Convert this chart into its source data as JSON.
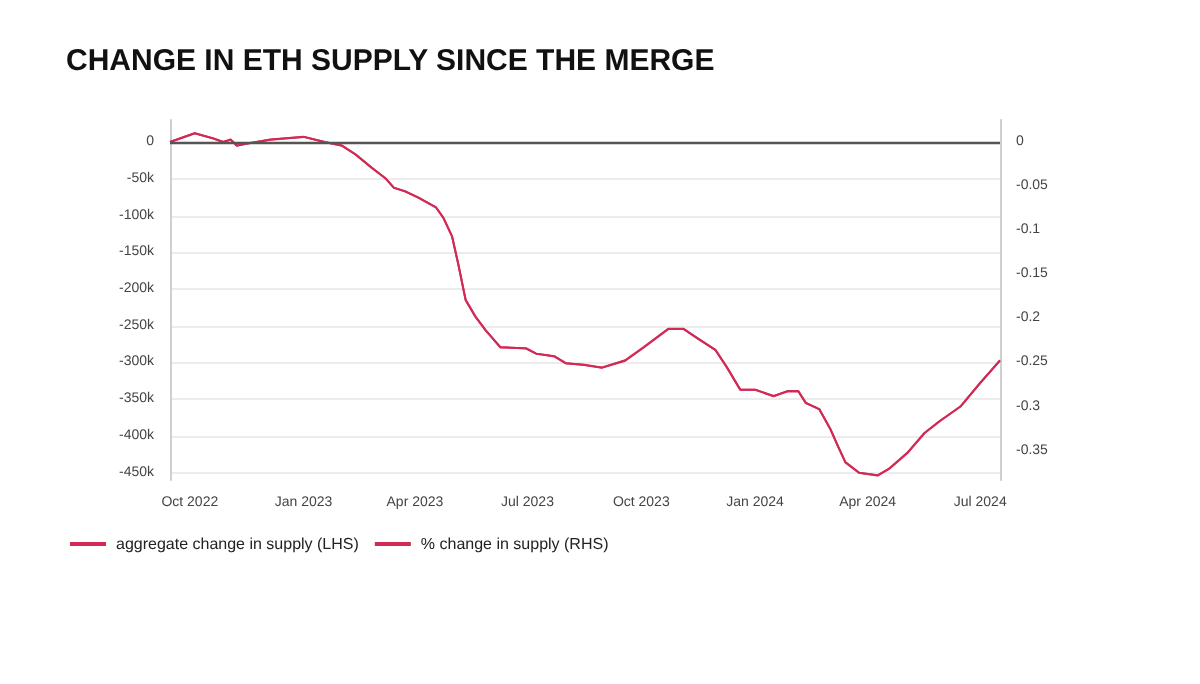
{
  "chart_data": {
    "type": "line",
    "title": "CHANGE IN ETH SUPPLY SINCE THE MERGE",
    "x": [
      "2022-09-15",
      "2022-10-05",
      "2022-10-20",
      "2022-10-28",
      "2022-11-03",
      "2022-11-08",
      "2022-11-16",
      "2022-12-05",
      "2023-01-01",
      "2023-01-18",
      "2023-02-01",
      "2023-02-12",
      "2023-02-25",
      "2023-03-08",
      "2023-03-15",
      "2023-03-24",
      "2023-04-04",
      "2023-04-18",
      "2023-04-24",
      "2023-05-01",
      "2023-05-06",
      "2023-05-12",
      "2023-05-20",
      "2023-05-28",
      "2023-06-09",
      "2023-06-30",
      "2023-07-08",
      "2023-07-23",
      "2023-08-01",
      "2023-08-16",
      "2023-08-30",
      "2023-09-18",
      "2023-10-03",
      "2023-10-23",
      "2023-11-04",
      "2023-11-16",
      "2023-11-30",
      "2023-12-09",
      "2023-12-20",
      "2024-01-01",
      "2024-01-16",
      "2024-01-27",
      "2024-02-05",
      "2024-02-11",
      "2024-02-22",
      "2024-03-02",
      "2024-03-08",
      "2024-03-14",
      "2024-03-25",
      "2024-04-09",
      "2024-04-18",
      "2024-05-03",
      "2024-05-17",
      "2024-05-29",
      "2024-06-15",
      "2024-07-01",
      "2024-07-17"
    ],
    "series": [
      {
        "name": "aggregate change in supply (LHS)",
        "color": "#d12a55",
        "values": [
          0,
          12000,
          5000,
          0,
          3000,
          -5000,
          -2000,
          3000,
          7000,
          0,
          -5000,
          -17000,
          -35000,
          -49000,
          -62000,
          -67000,
          -76000,
          -89000,
          -103000,
          -128000,
          -166000,
          -215000,
          -238000,
          -256000,
          -279000,
          -281000,
          -288000,
          -292000,
          -301000,
          -303000,
          -307000,
          -297000,
          -279000,
          -254000,
          -254000,
          -268000,
          -283000,
          -306000,
          -337000,
          -337000,
          -346000,
          -339000,
          -339000,
          -355000,
          -364000,
          -391000,
          -414000,
          -436000,
          -450000,
          -454000,
          -445000,
          -423000,
          -396000,
          -380000,
          -360000,
          -328000,
          -297000
        ]
      },
      {
        "name": "% change in supply (RHS)",
        "color": "#d12a55",
        "axis": "y2",
        "values": [
          0,
          0.01,
          0.004,
          0,
          0.003,
          -0.004,
          -0.002,
          0.003,
          0.006,
          0,
          -0.004,
          -0.014,
          -0.029,
          -0.041,
          -0.052,
          -0.056,
          -0.063,
          -0.074,
          -0.086,
          -0.107,
          -0.138,
          -0.179,
          -0.198,
          -0.213,
          -0.233,
          -0.234,
          -0.24,
          -0.243,
          -0.251,
          -0.253,
          -0.256,
          -0.248,
          -0.233,
          -0.212,
          -0.212,
          -0.223,
          -0.236,
          -0.255,
          -0.281,
          -0.281,
          -0.288,
          -0.283,
          -0.283,
          -0.296,
          -0.303,
          -0.326,
          -0.345,
          -0.363,
          -0.375,
          -0.378,
          -0.371,
          -0.353,
          -0.33,
          -0.317,
          -0.3,
          -0.273,
          -0.248
        ]
      }
    ],
    "xlim": [
      "2022-09-15",
      "2024-07-17"
    ],
    "xticks": [
      {
        "value": "2022-10-01",
        "label": "Oct 2022"
      },
      {
        "value": "2023-01-01",
        "label": "Jan 2023"
      },
      {
        "value": "2023-04-01",
        "label": "Apr 2023"
      },
      {
        "value": "2023-07-01",
        "label": "Jul 2023"
      },
      {
        "value": "2023-10-01",
        "label": "Oct 2023"
      },
      {
        "value": "2024-01-01",
        "label": "Jan 2024"
      },
      {
        "value": "2024-04-01",
        "label": "Apr 2024"
      },
      {
        "value": "2024-07-01",
        "label": "Jul 2024"
      }
    ],
    "ylim": [
      -460000,
      30000
    ],
    "yticks": [
      0,
      {
        "value": -50000,
        "label": "-50k"
      },
      {
        "value": -100000,
        "label": "-100k"
      },
      {
        "value": -150000,
        "label": "-150k"
      },
      {
        "value": -200000,
        "label": "-200k"
      },
      {
        "value": -250000,
        "label": "-250k"
      },
      {
        "value": -300000,
        "label": "-300k"
      },
      {
        "value": -350000,
        "label": "-350k"
      },
      {
        "value": -400000,
        "label": "-400k"
      },
      {
        "value": -450000,
        "label": "-450k"
      }
    ],
    "y2lim": [
      -0.3833,
      0.025
    ],
    "y2ticks": [
      0,
      -0.05,
      -0.1,
      -0.15,
      -0.2,
      -0.25,
      -0.3,
      -0.35
    ],
    "ref_lines": [
      {
        "axis": "y",
        "value": 0,
        "color": "#555555"
      }
    ],
    "grid": "y",
    "legend": "bottom left",
    "line_style": "solid",
    "marker": "none"
  }
}
